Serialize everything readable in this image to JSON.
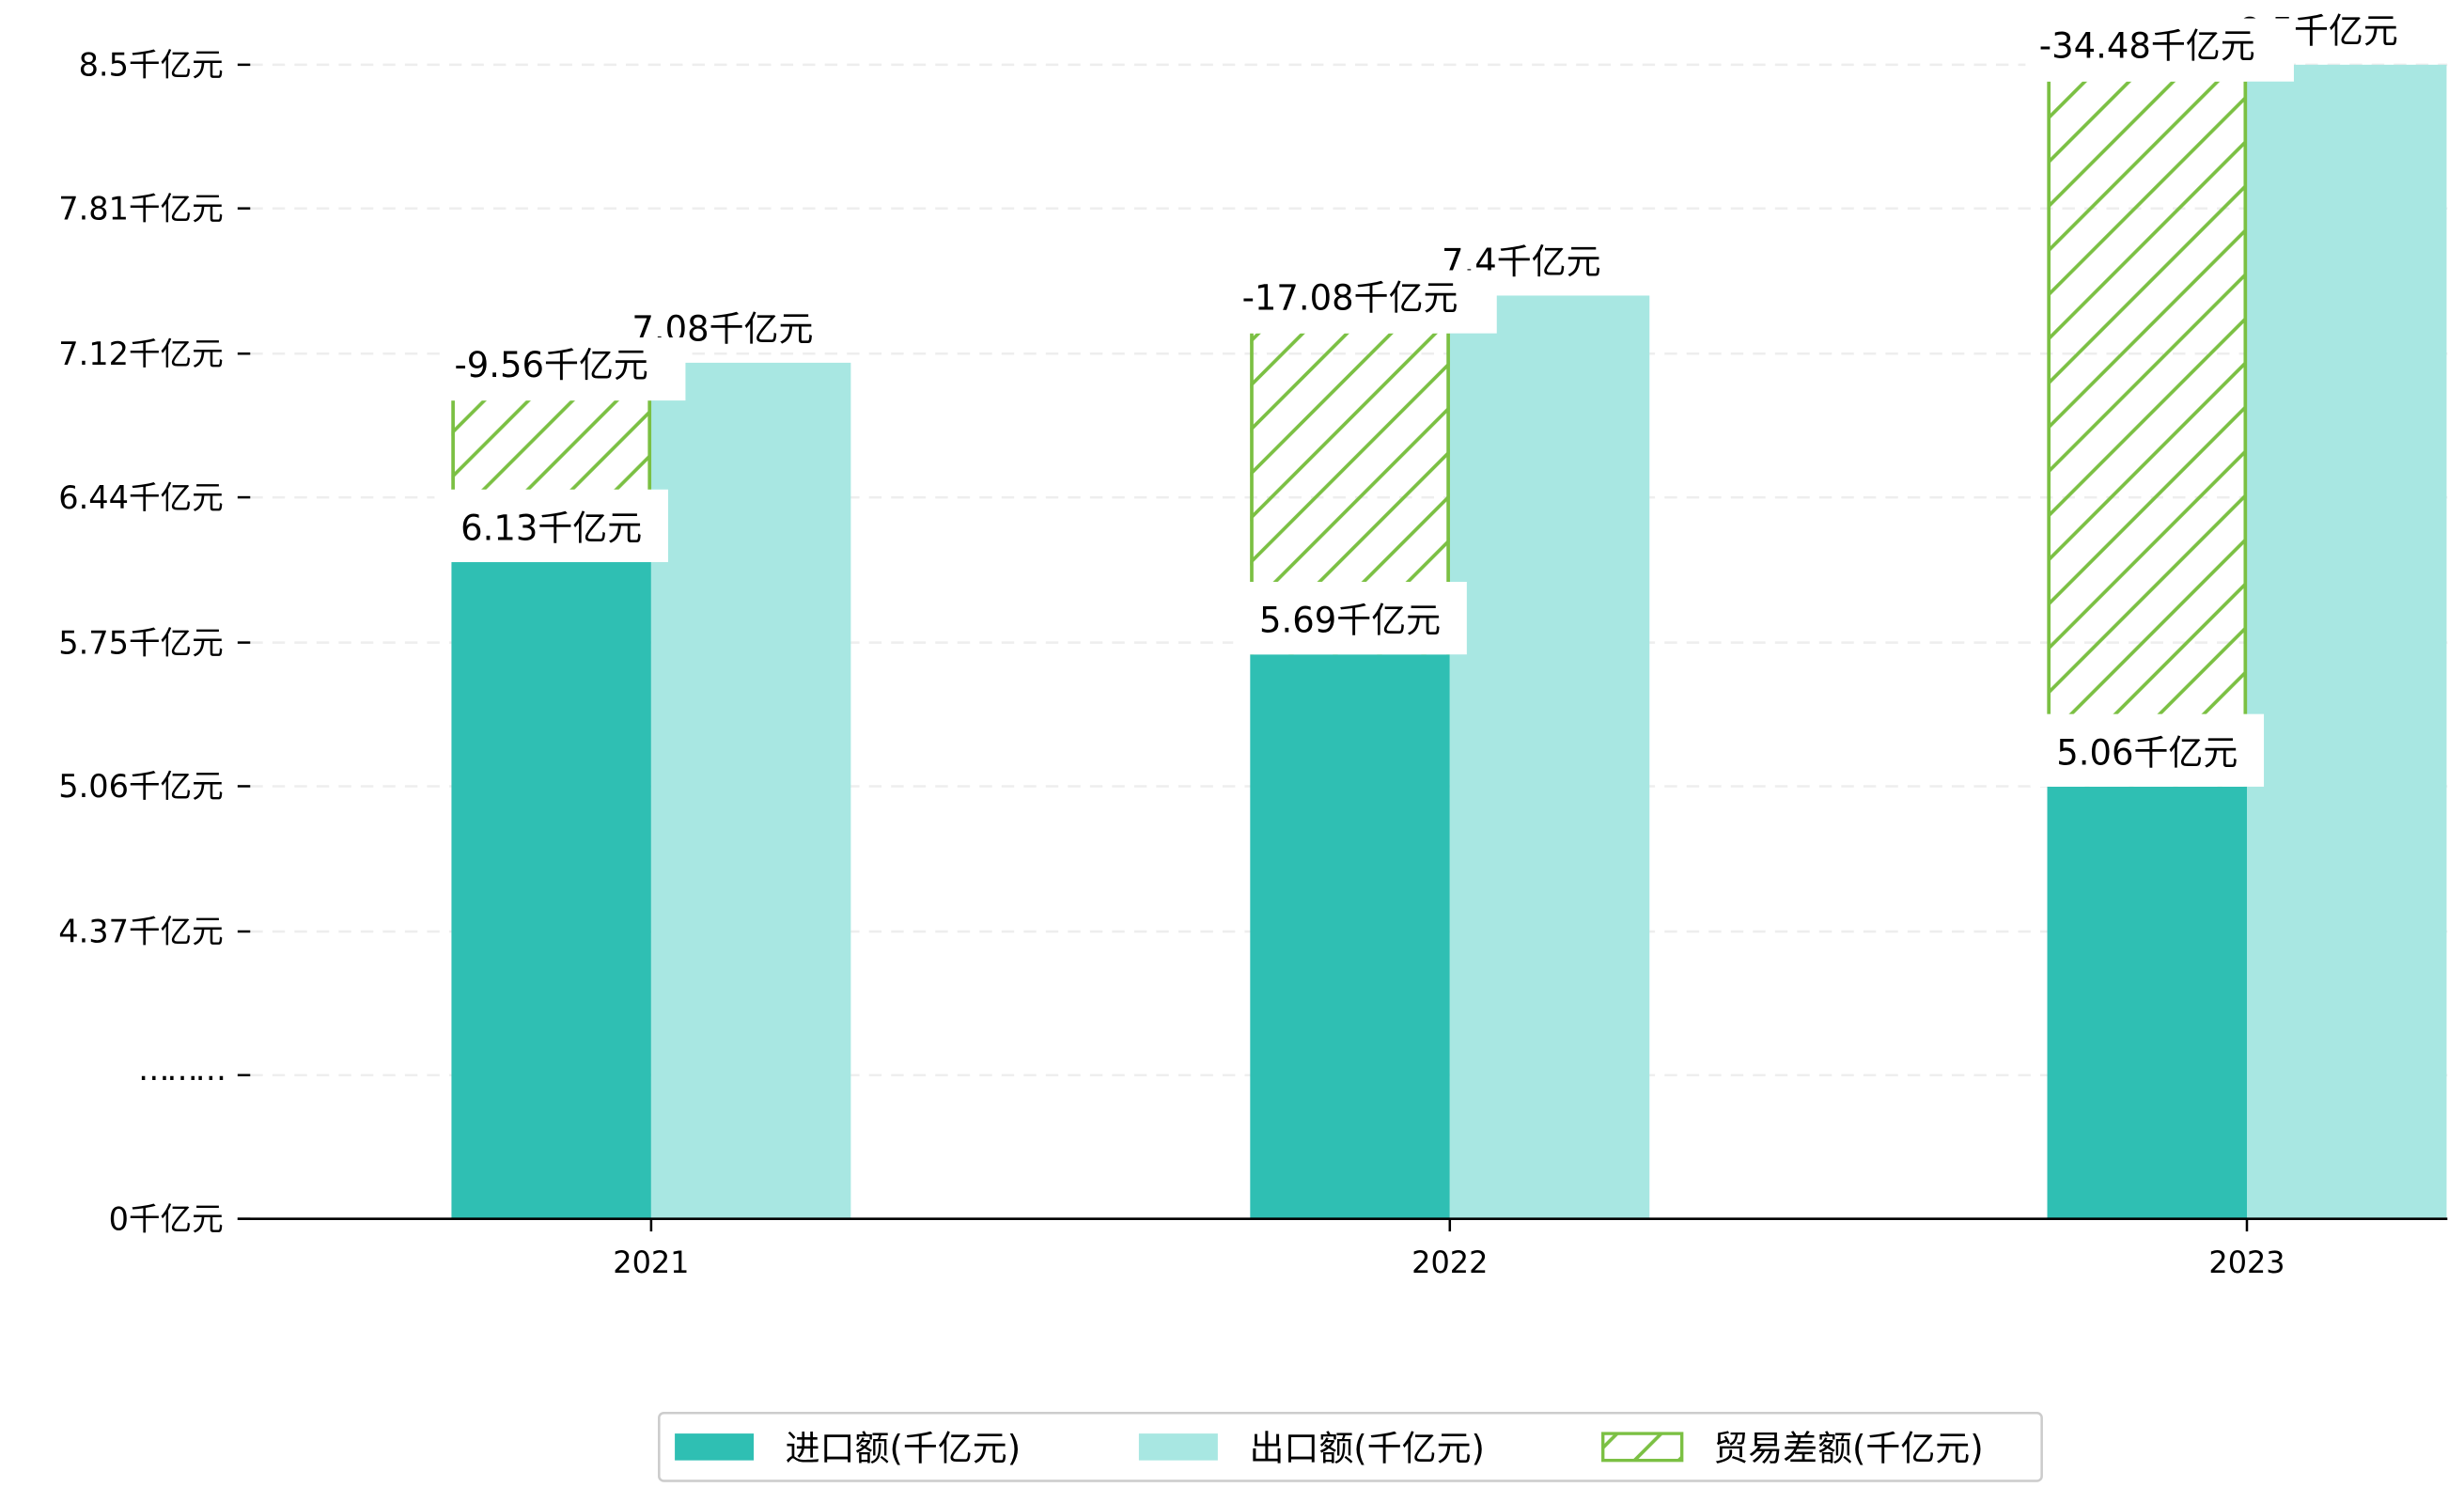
{
  "chart_data": {
    "type": "bar",
    "categories": [
      "2021",
      "2022",
      "2023"
    ],
    "unit": "千亿元",
    "y_axis": {
      "broken": true,
      "tick_labels": [
        "0千亿元",
        "………",
        "4.37千亿元",
        "5.06千亿元",
        "5.75千亿元",
        "6.44千亿元",
        "7.12千亿元",
        "7.81千亿元",
        "8.5千亿元"
      ],
      "tick_values": [
        0,
        null,
        4.37,
        5.06,
        5.75,
        6.44,
        7.12,
        7.81,
        8.5
      ],
      "range": [
        4.37,
        8.5
      ]
    },
    "grid": true,
    "series": [
      {
        "name": "进口额(千亿元)",
        "values": [
          6.13,
          5.69,
          5.06
        ],
        "labels": [
          "6.13千亿元",
          "5.69千亿元",
          "5.06千亿元"
        ],
        "color": "#2FBFB3"
      },
      {
        "name": "出口额(千亿元)",
        "values": [
          7.08,
          7.4,
          8.5
        ],
        "labels": [
          "7.08千亿元",
          "7.4千亿元",
          "8.5千亿元"
        ],
        "color": "#A8E7E2"
      },
      {
        "name": "贸易差额(千亿元)",
        "values": [
          -9.56,
          -17.08,
          -34.48
        ],
        "labels": [
          "-9.56千亿元",
          "-17.08千亿元",
          "-34.48千亿元"
        ],
        "color": "#7BC043",
        "hatch_top": [
          6.9,
          7.22,
          8.42
        ]
      }
    ],
    "legend": {
      "placement": "bottom-center",
      "items": [
        "进口额(千亿元)",
        "出口额(千亿元)",
        "贸易差额(千亿元)"
      ]
    }
  }
}
